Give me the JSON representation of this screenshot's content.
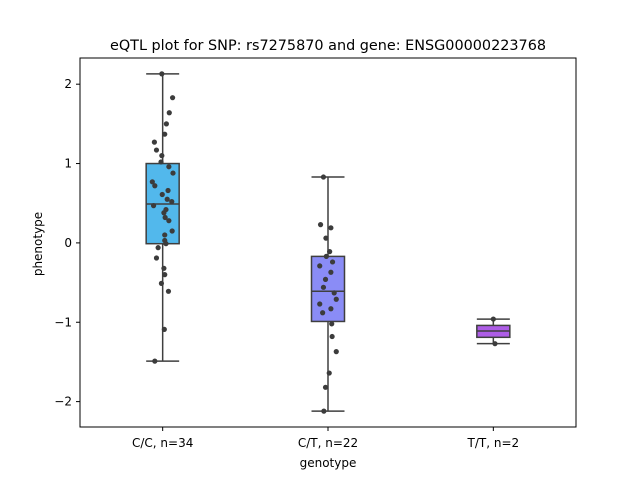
{
  "chart_data": {
    "type": "box",
    "title": "eQTL plot for SNP: rs7275870 and gene: ENSG00000223768",
    "xlabel": "genotype",
    "ylabel": "phenotype",
    "ylim": [
      -2.32,
      2.33
    ],
    "yticks": [
      -2,
      -1,
      0,
      1,
      2
    ],
    "yticklabels": [
      "−2",
      "−1",
      "0",
      "1",
      "2"
    ],
    "grid": false,
    "categories": [
      "C/C, n=34",
      "C/T, n=22",
      "T/T, n=2"
    ],
    "boxes": [
      {
        "color": "#52b8ec",
        "q1": -0.01,
        "median": 0.49,
        "q3": 1.0,
        "whisker_low": -1.49,
        "whisker_high": 2.13
      },
      {
        "color": "#8a8cf6",
        "q1": -0.99,
        "median": -0.61,
        "q3": -0.17,
        "whisker_low": -2.12,
        "whisker_high": 0.83
      },
      {
        "color": "#ad5de6",
        "q1": -1.19,
        "median": -1.11,
        "q3": -1.04,
        "whisker_low": -1.27,
        "whisker_high": -0.96
      }
    ],
    "points": [
      [
        [
          -0.02,
          2.13
        ],
        [
          0.24,
          1.83
        ],
        [
          0.16,
          1.64
        ],
        [
          0.09,
          1.5
        ],
        [
          0.05,
          1.37
        ],
        [
          -0.2,
          1.27
        ],
        [
          -0.15,
          1.17
        ],
        [
          -0.02,
          1.1
        ],
        [
          -0.04,
          1.02
        ],
        [
          0.15,
          0.96
        ],
        [
          0.25,
          0.88
        ],
        [
          -0.25,
          0.77
        ],
        [
          -0.19,
          0.72
        ],
        [
          0.13,
          0.66
        ],
        [
          -0.01,
          0.61
        ],
        [
          0.11,
          0.55
        ],
        [
          0.22,
          0.52
        ],
        [
          -0.22,
          0.47
        ],
        [
          0.08,
          0.42
        ],
        [
          0.03,
          0.38
        ],
        [
          0.06,
          0.32
        ],
        [
          0.15,
          0.28
        ],
        [
          0.23,
          0.15
        ],
        [
          0.05,
          0.1
        ],
        [
          0.05,
          0.03
        ],
        [
          0.08,
          -0.01
        ],
        [
          -0.11,
          -0.06
        ],
        [
          -0.15,
          -0.19
        ],
        [
          0.03,
          -0.32
        ],
        [
          0.05,
          -0.4
        ],
        [
          -0.03,
          -0.51
        ],
        [
          0.14,
          -0.61
        ],
        [
          0.04,
          -1.09
        ],
        [
          -0.19,
          -1.49
        ]
      ],
      [
        [
          -0.11,
          0.83
        ],
        [
          -0.18,
          0.23
        ],
        [
          0.07,
          0.19
        ],
        [
          -0.05,
          0.06
        ],
        [
          0.04,
          -0.11
        ],
        [
          -0.04,
          -0.17
        ],
        [
          0.11,
          -0.24
        ],
        [
          -0.2,
          -0.29
        ],
        [
          0.07,
          -0.37
        ],
        [
          -0.06,
          -0.46
        ],
        [
          -0.11,
          -0.56
        ],
        [
          0.15,
          -0.63
        ],
        [
          0.2,
          -0.71
        ],
        [
          -0.2,
          -0.77
        ],
        [
          0.07,
          -0.83
        ],
        [
          -0.13,
          -0.88
        ],
        [
          0.09,
          -1.02
        ],
        [
          0.1,
          -1.18
        ],
        [
          0.2,
          -1.37
        ],
        [
          0.03,
          -1.64
        ],
        [
          -0.06,
          -1.82
        ],
        [
          -0.1,
          -2.12
        ]
      ],
      [
        [
          0.0,
          -0.96
        ],
        [
          0.04,
          -1.27
        ]
      ]
    ]
  }
}
